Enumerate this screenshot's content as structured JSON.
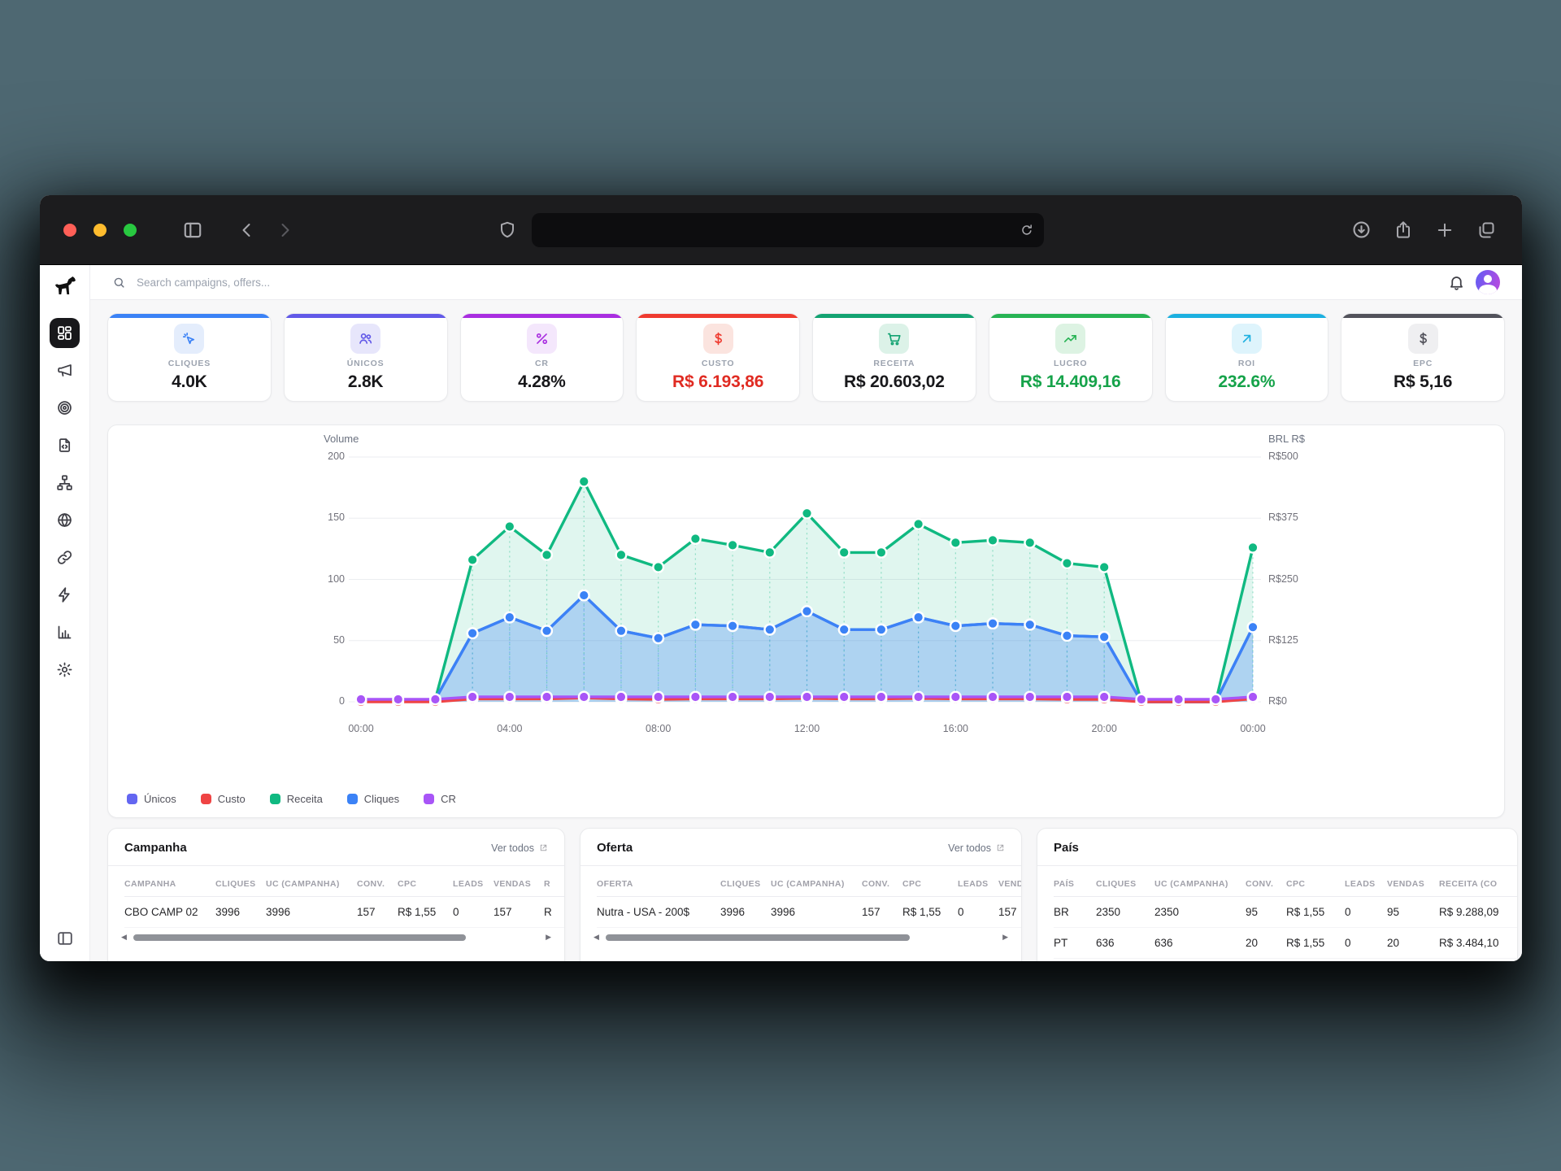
{
  "chrome": {
    "traffic_lights": [
      {
        "name": "close",
        "color": "#ff5f57"
      },
      {
        "name": "minimize",
        "color": "#febc2e"
      },
      {
        "name": "zoom",
        "color": "#28c840"
      }
    ],
    "address_text": "",
    "icons": [
      "sidebar-toggle",
      "back",
      "forward",
      "shield",
      "reload",
      "download",
      "share",
      "new-tab",
      "tab-overview"
    ]
  },
  "header": {
    "search_placeholder": "Search campaigns, offers...",
    "icons": [
      "search",
      "bell",
      "avatar"
    ]
  },
  "sidebar": {
    "logo": "dog-logo",
    "items": [
      {
        "icon": "dashboard-grid",
        "active": true
      },
      {
        "icon": "megaphone",
        "active": false
      },
      {
        "icon": "target",
        "active": false
      },
      {
        "icon": "file-code",
        "active": false
      },
      {
        "icon": "sitemap",
        "active": false
      },
      {
        "icon": "globe",
        "active": false
      },
      {
        "icon": "link",
        "active": false
      },
      {
        "icon": "zap",
        "active": false
      },
      {
        "icon": "bar-chart",
        "active": false
      },
      {
        "icon": "gear",
        "active": false
      }
    ],
    "bottom_icon": "panel-left"
  },
  "kpis": [
    {
      "label": "CLIQUES",
      "value": "4.0K",
      "icon": "cursor-click",
      "accent": "#3b82f6",
      "tile_bg": "#e4edfc",
      "value_color": "#18181b"
    },
    {
      "label": "ÚNICOS",
      "value": "2.8K",
      "icon": "users",
      "accent": "#6259e8",
      "tile_bg": "#e7e6fb",
      "value_color": "#18181b"
    },
    {
      "label": "CR",
      "value": "4.28%",
      "icon": "percent",
      "accent": "#a92ee0",
      "tile_bg": "#f4e7fc",
      "value_color": "#18181b"
    },
    {
      "label": "CUSTO",
      "value": "R$ 6.193,86",
      "icon": "dollar",
      "accent": "#ef3b30",
      "tile_bg": "#fbe4df",
      "value_color": "#e02b22"
    },
    {
      "label": "RECEITA",
      "value": "R$ 20.603,02",
      "icon": "cart",
      "accent": "#13a372",
      "tile_bg": "#dcf2e8",
      "value_color": "#18181b"
    },
    {
      "label": "LUCRO",
      "value": "R$ 14.409,16",
      "icon": "trending-up",
      "accent": "#27b354",
      "tile_bg": "#ddf3e3",
      "value_color": "#16a34a"
    },
    {
      "label": "ROI",
      "value": "232.6%",
      "icon": "arrow-up-right",
      "accent": "#1cb0e0",
      "tile_bg": "#def4fc",
      "value_color": "#16a34a"
    },
    {
      "label": "EPC",
      "value": "R$ 5,16",
      "icon": "dollar",
      "accent": "#52525b",
      "tile_bg": "#efeff1",
      "value_color": "#18181b"
    }
  ],
  "chart_data": {
    "type": "line",
    "x_hours": [
      "00:00",
      "01:00",
      "02:00",
      "03:00",
      "04:00",
      "05:00",
      "06:00",
      "07:00",
      "08:00",
      "09:00",
      "10:00",
      "11:00",
      "12:00",
      "13:00",
      "14:00",
      "15:00",
      "16:00",
      "17:00",
      "18:00",
      "19:00",
      "20:00",
      "21:00",
      "22:00",
      "23:00",
      "00:00"
    ],
    "x_ticks": [
      "00:00",
      "04:00",
      "08:00",
      "12:00",
      "16:00",
      "20:00",
      "00:00"
    ],
    "x_tick_indices": [
      0,
      4,
      8,
      12,
      16,
      20,
      24
    ],
    "left_axis": {
      "title": "Volume",
      "ticks": [
        200,
        150,
        100,
        50,
        0
      ],
      "max": 200
    },
    "right_axis": {
      "title": "BRL R$",
      "ticks": [
        "R$500",
        "R$375",
        "R$250",
        "R$125",
        "R$0"
      ],
      "max": 500
    },
    "grid": true,
    "legend_position": "bottom-left",
    "series": [
      {
        "name": "Únicos",
        "color": "#6366f1",
        "axis": "left",
        "values": [
          2,
          1,
          2,
          56,
          69,
          58,
          87,
          58,
          52,
          63,
          62,
          59,
          74,
          59,
          59,
          69,
          62,
          64,
          63,
          54,
          53,
          0,
          0,
          0,
          61
        ]
      },
      {
        "name": "Custo",
        "color": "#ef4444",
        "axis": "right",
        "values": [
          0,
          0,
          0,
          6,
          6,
          6,
          8,
          6,
          5,
          6,
          6,
          6,
          7,
          6,
          6,
          7,
          6,
          6,
          6,
          5,
          5,
          0,
          0,
          0,
          6
        ]
      },
      {
        "name": "Receita",
        "color": "#10b981",
        "axis": "right",
        "fill": "rgba(16,185,129,0.13)",
        "drop": true,
        "values": [
          5,
          3,
          5,
          290,
          358,
          300,
          450,
          300,
          275,
          333,
          320,
          305,
          385,
          305,
          305,
          363,
          325,
          330,
          325,
          283,
          275,
          0,
          0,
          0,
          315
        ]
      },
      {
        "name": "Cliques",
        "color": "#3b82f6",
        "axis": "left",
        "fill": "rgba(59,130,246,0.30)",
        "drop": true,
        "values": [
          2,
          1,
          2,
          56,
          69,
          58,
          87,
          58,
          52,
          63,
          62,
          59,
          74,
          59,
          59,
          69,
          62,
          64,
          63,
          54,
          53,
          0,
          0,
          0,
          61
        ]
      },
      {
        "name": "CR",
        "color": "#a855f7",
        "axis": "left",
        "values": [
          2,
          2,
          2,
          4,
          4,
          4,
          4,
          4,
          4,
          4,
          4,
          4,
          4,
          4,
          4,
          4,
          4,
          4,
          4,
          4,
          4,
          2,
          2,
          2,
          4
        ]
      }
    ]
  },
  "tables": [
    {
      "title": "Campanha",
      "link": "Ver todos",
      "columns": [
        "CAMPANHA",
        "CLIQUES",
        "UC (CAMPANHA)",
        "CONV.",
        "CPC",
        "LEADS",
        "VENDAS",
        "R"
      ],
      "rows": [
        [
          "CBO CAMP 02",
          "3996",
          "3996",
          "157",
          "R$ 1,55",
          "0",
          "157",
          "R"
        ]
      ],
      "scrollbar": true
    },
    {
      "title": "Oferta",
      "link": "Ver todos",
      "columns": [
        "OFERTA",
        "CLIQUES",
        "UC (CAMPANHA)",
        "CONV.",
        "CPC",
        "LEADS",
        "VENDAS"
      ],
      "rows": [
        [
          "Nutra - USA - 200$",
          "3996",
          "3996",
          "157",
          "R$ 1,55",
          "0",
          "157"
        ]
      ],
      "scrollbar": true
    },
    {
      "title": "País",
      "link": null,
      "columns": [
        "PAÍS",
        "CLIQUES",
        "UC (CAMPANHA)",
        "CONV.",
        "CPC",
        "LEADS",
        "VENDAS",
        "RECEITA (CO"
      ],
      "rows": [
        [
          "BR",
          "2350",
          "2350",
          "95",
          "R$ 1,55",
          "0",
          "95",
          "R$ 9.288,09"
        ],
        [
          "PT",
          "636",
          "636",
          "20",
          "R$ 1,55",
          "0",
          "20",
          "R$ 3.484,10"
        ]
      ],
      "scrollbar": false
    }
  ]
}
